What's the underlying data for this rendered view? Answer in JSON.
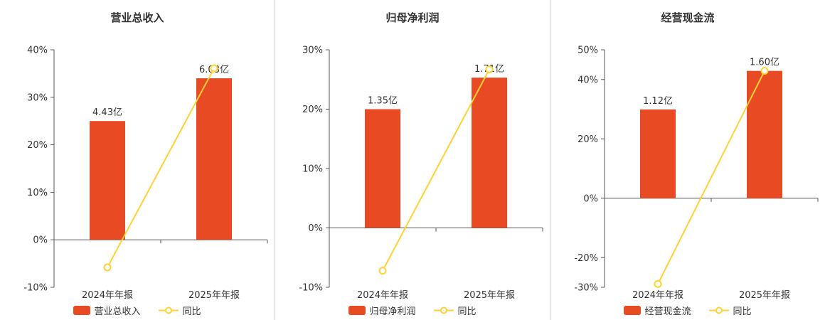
{
  "colors": {
    "bar": "#e84a23",
    "line": "#ffd234",
    "axis": "#555555",
    "text": "#333333",
    "divider": "#d4d4d4",
    "background": "#ffffff"
  },
  "chart_data": [
    {
      "type": "bar",
      "subtype": "bar-line-combo",
      "title": "营业总收入",
      "categories": [
        "2024年年报",
        "2025年年报"
      ],
      "bar_series": {
        "name": "营业总收入",
        "unit": "亿",
        "values": [
          4.43,
          6.03
        ],
        "labels": [
          "4.43亿",
          "6.03亿"
        ],
        "display_axis_heights_pct": [
          25,
          34
        ]
      },
      "line_series": {
        "name": "同比",
        "unit": "%",
        "values_pct": [
          -5.8,
          36.1
        ]
      },
      "ylim": [
        -10,
        40
      ],
      "y_ticks_pct": [
        40,
        30,
        20,
        10,
        0,
        -10
      ],
      "y_unit": "%",
      "grid": false,
      "legend_position": "bottom"
    },
    {
      "type": "bar",
      "subtype": "bar-line-combo",
      "title": "归母净利润",
      "categories": [
        "2024年年报",
        "2025年年报"
      ],
      "bar_series": {
        "name": "归母净利润",
        "unit": "亿",
        "values": [
          1.35,
          1.71
        ],
        "labels": [
          "1.35亿",
          "1.71亿"
        ],
        "display_axis_heights_pct": [
          20,
          25.3
        ]
      },
      "line_series": {
        "name": "同比",
        "unit": "%",
        "values_pct": [
          -7.2,
          26.7
        ]
      },
      "ylim": [
        -10,
        30
      ],
      "y_ticks_pct": [
        30,
        20,
        10,
        0,
        -10
      ],
      "y_unit": "%",
      "grid": false,
      "legend_position": "bottom"
    },
    {
      "type": "bar",
      "subtype": "bar-line-combo",
      "title": "经营现金流",
      "categories": [
        "2024年年报",
        "2025年年报"
      ],
      "bar_series": {
        "name": "经营现金流",
        "unit": "亿",
        "values": [
          1.12,
          1.6
        ],
        "labels": [
          "1.12亿",
          "1.60亿"
        ],
        "display_axis_heights_pct": [
          29.9,
          42.9
        ]
      },
      "line_series": {
        "name": "同比",
        "unit": "%",
        "values_pct": [
          -28.9,
          42.9
        ]
      },
      "ylim": [
        -30,
        50
      ],
      "y_ticks_pct": [
        50,
        40,
        20,
        0,
        -20,
        -30
      ],
      "y_unit": "%",
      "grid": false,
      "legend_position": "bottom"
    }
  ]
}
